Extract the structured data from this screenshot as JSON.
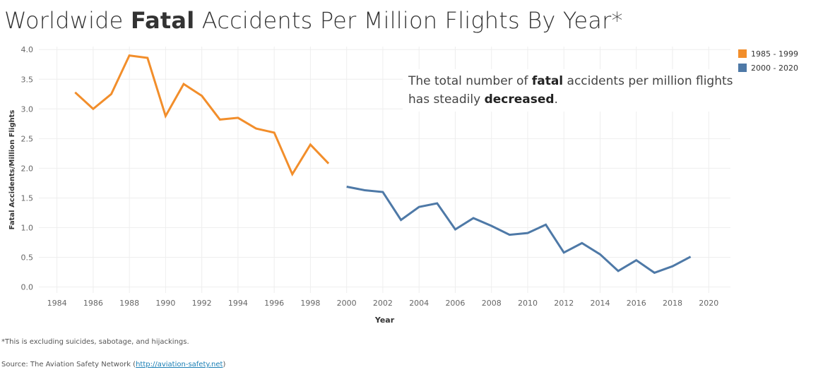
{
  "title": {
    "pre": "Worldwide ",
    "bold": "Fatal",
    "post": " Accidents Per Million Flights By Year*"
  },
  "annotation": {
    "part1": "The total number of ",
    "bold1": "fatal",
    "part2": " accidents per million flights has steadily ",
    "bold2": "decreased",
    "part3": "."
  },
  "footnote": "*This is excluding suicides, sabotage, and hijackings.",
  "source": {
    "prefix": "Source: The Aviation Safety Network (",
    "link": "http://aviation-safety.net",
    "suffix": ")"
  },
  "colors": {
    "series_1985_1999": "#f28e2b",
    "series_2000_2020": "#4e79a7",
    "grid": "#eeeeee",
    "axis_text": "#666666"
  },
  "chart_data": {
    "type": "line",
    "xlabel": "Year",
    "ylabel": "Fatal Accidents/Million Flights",
    "xlim": [
      1983,
      2021.2
    ],
    "ylim": [
      -0.1,
      4.05
    ],
    "xticks": [
      1984,
      1986,
      1988,
      1990,
      1992,
      1994,
      1996,
      1998,
      2000,
      2002,
      2004,
      2006,
      2008,
      2010,
      2012,
      2014,
      2016,
      2018,
      2020
    ],
    "yticks": [
      "0.0",
      "0.5",
      "1.0",
      "1.5",
      "2.0",
      "2.5",
      "3.0",
      "3.5",
      "4.0"
    ],
    "grid": true,
    "legend_position": "right",
    "series": [
      {
        "name": "1985 - 1999",
        "color": "#f28e2b",
        "x": [
          1985,
          1986,
          1987,
          1988,
          1989,
          1990,
          1991,
          1992,
          1993,
          1994,
          1995,
          1996,
          1997,
          1998,
          1999
        ],
        "y": [
          3.28,
          3.0,
          3.25,
          3.9,
          3.86,
          2.88,
          3.42,
          3.22,
          2.82,
          2.85,
          2.67,
          2.6,
          1.9,
          2.4,
          2.08
        ]
      },
      {
        "name": "2000 - 2020",
        "color": "#4e79a7",
        "x": [
          2000,
          2001,
          2002,
          2003,
          2004,
          2005,
          2006,
          2007,
          2008,
          2009,
          2010,
          2011,
          2012,
          2013,
          2014,
          2015,
          2016,
          2017,
          2018,
          2019
        ],
        "y": [
          1.69,
          1.63,
          1.6,
          1.13,
          1.35,
          1.41,
          0.97,
          1.16,
          1.03,
          0.88,
          0.91,
          1.05,
          0.58,
          0.74,
          0.55,
          0.27,
          0.45,
          0.24,
          0.35,
          0.51
        ]
      }
    ]
  }
}
